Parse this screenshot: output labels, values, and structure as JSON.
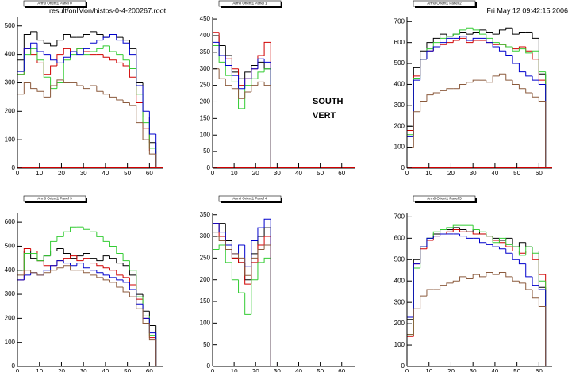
{
  "header": {
    "file": "result/onlMon/histos-0-4-200267.root",
    "date": "Fri May 12 09:42:15 2006",
    "label1": "SOUTH",
    "label2": "VERT"
  },
  "chart_data": [
    {
      "type": "histogram",
      "title": "Arm0 Orient1 Panel 0",
      "bins": [
        0,
        3,
        6,
        9,
        12,
        15,
        18,
        21,
        24,
        27,
        30,
        33,
        36,
        39,
        42,
        45,
        48,
        51,
        54,
        57,
        60,
        63,
        66
      ],
      "xlim": [
        0,
        66
      ],
      "xticks": [
        0,
        10,
        20,
        30,
        40,
        50,
        60
      ],
      "ylim": [
        0,
        530
      ],
      "yticks": [
        0,
        100,
        200,
        300,
        400,
        500
      ],
      "series": [
        {
          "color": "#000000",
          "values": [
            380,
            470,
            480,
            450,
            440,
            430,
            450,
            470,
            460,
            460,
            470,
            480,
            470,
            460,
            470,
            460,
            450,
            420,
            300,
            180,
            90,
            0
          ]
        },
        {
          "color": "#d00000",
          "values": [
            330,
            420,
            400,
            370,
            330,
            360,
            400,
            420,
            410,
            420,
            410,
            400,
            400,
            390,
            380,
            370,
            360,
            320,
            230,
            140,
            60,
            0
          ]
        },
        {
          "color": "#33cc33",
          "values": [
            330,
            400,
            420,
            380,
            320,
            280,
            300,
            380,
            400,
            420,
            400,
            410,
            420,
            430,
            410,
            400,
            380,
            350,
            260,
            160,
            70,
            0
          ]
        },
        {
          "color": "#0000cc",
          "values": [
            340,
            420,
            440,
            410,
            400,
            380,
            370,
            390,
            410,
            400,
            420,
            440,
            450,
            460,
            470,
            450,
            440,
            400,
            290,
            200,
            120,
            0
          ]
        },
        {
          "color": "#8b5a3c",
          "values": [
            260,
            300,
            280,
            270,
            250,
            290,
            310,
            300,
            300,
            290,
            280,
            290,
            270,
            260,
            250,
            240,
            230,
            220,
            160,
            100,
            50,
            0
          ]
        }
      ]
    },
    {
      "type": "histogram",
      "title": "Arm0 Orient1 Panel 1",
      "bins": [
        0,
        3,
        6,
        9,
        12,
        15,
        18,
        21,
        24,
        27
      ],
      "xlim": [
        0,
        66
      ],
      "xticks": [
        0,
        10,
        20,
        30,
        40,
        50,
        60
      ],
      "ylim": [
        0,
        455
      ],
      "yticks": [
        0,
        50,
        100,
        150,
        200,
        250,
        300,
        350,
        400,
        450
      ],
      "series": [
        {
          "color": "#000000",
          "values": [
            400,
            370,
            340,
            290,
            270,
            290,
            310,
            320,
            300
          ]
        },
        {
          "color": "#d00000",
          "values": [
            410,
            340,
            330,
            300,
            250,
            270,
            300,
            340,
            380
          ]
        },
        {
          "color": "#33cc33",
          "values": [
            370,
            320,
            280,
            260,
            180,
            250,
            270,
            290,
            300
          ]
        },
        {
          "color": "#0000cc",
          "values": [
            380,
            340,
            310,
            280,
            240,
            270,
            300,
            330,
            320
          ]
        },
        {
          "color": "#8b5a3c",
          "values": [
            300,
            270,
            250,
            240,
            210,
            230,
            250,
            260,
            250
          ]
        }
      ]
    },
    {
      "type": "histogram",
      "title": "Arm0 Orient1 Panel 2",
      "bins": [
        0,
        3,
        6,
        9,
        12,
        15,
        18,
        21,
        24,
        27,
        30,
        33,
        36,
        39,
        42,
        45,
        48,
        51,
        54,
        57,
        60,
        63,
        66
      ],
      "xlim": [
        0,
        66
      ],
      "xticks": [
        0,
        10,
        20,
        30,
        40,
        50,
        60
      ],
      "ylim": [
        0,
        720
      ],
      "yticks": [
        0,
        100,
        200,
        300,
        400,
        500,
        600,
        700
      ],
      "series": [
        {
          "color": "#000000",
          "values": [
            200,
            480,
            560,
            600,
            620,
            640,
            630,
            640,
            650,
            640,
            650,
            660,
            650,
            640,
            660,
            670,
            640,
            650,
            650,
            620,
            450,
            0
          ]
        },
        {
          "color": "#d00000",
          "values": [
            180,
            440,
            520,
            560,
            580,
            590,
            600,
            610,
            620,
            600,
            610,
            610,
            600,
            590,
            590,
            580,
            570,
            580,
            560,
            520,
            420,
            0
          ]
        },
        {
          "color": "#33cc33",
          "values": [
            160,
            430,
            520,
            570,
            600,
            620,
            630,
            640,
            660,
            670,
            660,
            640,
            620,
            600,
            590,
            580,
            560,
            570,
            550,
            560,
            460,
            0
          ]
        },
        {
          "color": "#0000cc",
          "values": [
            150,
            420,
            520,
            560,
            580,
            600,
            620,
            620,
            630,
            610,
            620,
            620,
            600,
            580,
            560,
            540,
            500,
            460,
            440,
            420,
            400,
            0
          ]
        },
        {
          "color": "#8b5a3c",
          "values": [
            100,
            270,
            320,
            350,
            360,
            370,
            380,
            380,
            400,
            410,
            420,
            420,
            410,
            440,
            450,
            420,
            400,
            380,
            360,
            340,
            320,
            0
          ]
        }
      ]
    },
    {
      "type": "histogram",
      "title": "Arm0 Orient1 Panel 3",
      "bins": [
        0,
        3,
        6,
        9,
        12,
        15,
        18,
        21,
        24,
        27,
        30,
        33,
        36,
        39,
        42,
        45,
        48,
        51,
        54,
        57,
        60,
        63,
        66
      ],
      "xlim": [
        0,
        66
      ],
      "xticks": [
        0,
        10,
        20,
        30,
        40,
        50,
        60
      ],
      "ylim": [
        0,
        640
      ],
      "yticks": [
        0,
        100,
        200,
        300,
        400,
        500,
        600
      ],
      "series": [
        {
          "color": "#000000",
          "values": [
            400,
            480,
            450,
            440,
            460,
            480,
            490,
            470,
            450,
            460,
            470,
            450,
            440,
            460,
            450,
            430,
            420,
            380,
            300,
            230,
            170,
            0
          ]
        },
        {
          "color": "#d00000",
          "values": [
            360,
            490,
            480,
            440,
            420,
            420,
            440,
            450,
            460,
            440,
            450,
            430,
            420,
            410,
            400,
            380,
            370,
            340,
            280,
            200,
            120,
            0
          ]
        },
        {
          "color": "#33cc33",
          "values": [
            400,
            470,
            470,
            440,
            460,
            520,
            540,
            560,
            580,
            580,
            570,
            560,
            540,
            520,
            500,
            470,
            440,
            400,
            290,
            210,
            130,
            0
          ]
        },
        {
          "color": "#0000cc",
          "values": [
            360,
            380,
            390,
            380,
            400,
            420,
            440,
            430,
            420,
            430,
            410,
            400,
            390,
            380,
            370,
            360,
            350,
            320,
            260,
            200,
            140,
            0
          ]
        },
        {
          "color": "#8b5a3c",
          "values": [
            380,
            400,
            390,
            380,
            390,
            400,
            410,
            420,
            400,
            400,
            390,
            380,
            370,
            360,
            350,
            330,
            310,
            290,
            240,
            180,
            110,
            0
          ]
        }
      ]
    },
    {
      "type": "histogram",
      "title": "Arm0 Orient1 Panel 4",
      "bins": [
        0,
        3,
        6,
        9,
        12,
        15,
        18,
        21,
        24,
        27
      ],
      "xlim": [
        0,
        66
      ],
      "xticks": [
        0,
        10,
        20,
        30,
        40,
        50,
        60
      ],
      "ylim": [
        0,
        355
      ],
      "yticks": [
        0,
        50,
        100,
        150,
        200,
        250,
        300,
        350
      ],
      "series": [
        {
          "color": "#000000",
          "values": [
            310,
            330,
            290,
            250,
            240,
            200,
            260,
            300,
            320
          ]
        },
        {
          "color": "#d00000",
          "values": [
            330,
            300,
            270,
            250,
            240,
            190,
            240,
            280,
            300
          ]
        },
        {
          "color": "#33cc33",
          "values": [
            270,
            280,
            240,
            200,
            170,
            120,
            200,
            240,
            250
          ]
        },
        {
          "color": "#0000cc",
          "values": [
            330,
            310,
            280,
            260,
            280,
            230,
            290,
            320,
            340
          ]
        },
        {
          "color": "#8b5a3c",
          "values": [
            300,
            290,
            270,
            260,
            250,
            210,
            250,
            270,
            280
          ]
        }
      ]
    },
    {
      "type": "histogram",
      "title": "Arm0 Orient1 Panel 5",
      "bins": [
        0,
        3,
        6,
        9,
        12,
        15,
        18,
        21,
        24,
        27,
        30,
        33,
        36,
        39,
        42,
        45,
        48,
        51,
        54,
        57,
        60,
        63,
        66
      ],
      "xlim": [
        0,
        66
      ],
      "xticks": [
        0,
        10,
        20,
        30,
        40,
        50,
        60
      ],
      "ylim": [
        0,
        720
      ],
      "yticks": [
        0,
        100,
        200,
        300,
        400,
        500,
        600,
        700
      ],
      "series": [
        {
          "color": "#000000",
          "values": [
            220,
            500,
            560,
            600,
            620,
            640,
            640,
            650,
            640,
            630,
            640,
            620,
            610,
            600,
            590,
            600,
            560,
            580,
            560,
            540,
            370,
            0
          ]
        },
        {
          "color": "#d00000",
          "values": [
            140,
            480,
            550,
            590,
            610,
            620,
            630,
            640,
            630,
            630,
            620,
            620,
            610,
            590,
            580,
            560,
            540,
            530,
            540,
            500,
            430,
            0
          ]
        },
        {
          "color": "#33cc33",
          "values": [
            150,
            460,
            560,
            600,
            630,
            640,
            650,
            660,
            660,
            660,
            640,
            630,
            610,
            580,
            600,
            570,
            560,
            520,
            560,
            530,
            400,
            0
          ]
        },
        {
          "color": "#0000cc",
          "values": [
            230,
            480,
            560,
            600,
            610,
            620,
            620,
            620,
            610,
            600,
            600,
            580,
            570,
            560,
            550,
            530,
            500,
            480,
            420,
            380,
            360,
            0
          ]
        },
        {
          "color": "#8b5a3c",
          "values": [
            150,
            270,
            330,
            360,
            360,
            380,
            390,
            400,
            420,
            410,
            430,
            420,
            440,
            430,
            440,
            420,
            400,
            390,
            360,
            320,
            280,
            0
          ]
        }
      ]
    }
  ]
}
